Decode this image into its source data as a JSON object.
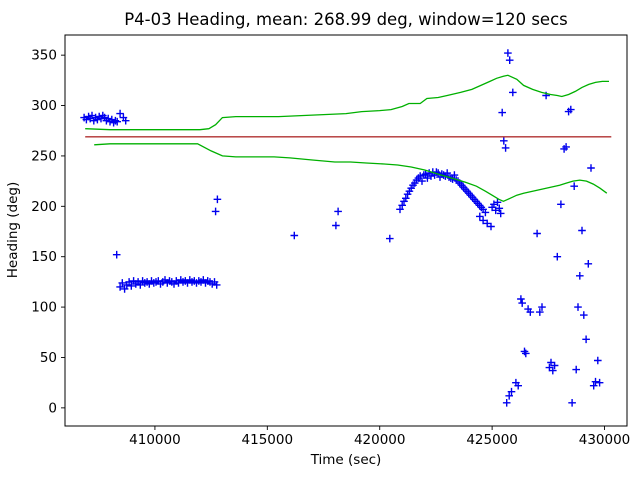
{
  "chart_data": {
    "type": "scatter",
    "title": "P4-03 Heading, mean: 268.99 deg, window=120 secs",
    "xlabel": "Time (sec)",
    "ylabel": "Heading (deg)",
    "xlim": [
      406000,
      431000
    ],
    "ylim": [
      -18,
      370
    ],
    "xticks": [
      410000,
      415000,
      420000,
      425000,
      430000
    ],
    "yticks": [
      0,
      50,
      100,
      150,
      200,
      250,
      300,
      350
    ],
    "grid": false,
    "legend": "none",
    "mean_deg": 268.99,
    "window_secs": 120,
    "colors": {
      "samples": "#0000ee",
      "window_bounds": "#00b000",
      "mean_line": "#b03030",
      "frame": "#000000"
    },
    "series": [
      {
        "name": "heading-samples",
        "type": "scatter",
        "marker": "+",
        "color": "#0000ee",
        "points": [
          [
            406850,
            288
          ],
          [
            406950,
            286
          ],
          [
            407050,
            289
          ],
          [
            407120,
            287
          ],
          [
            407200,
            290
          ],
          [
            407280,
            285
          ],
          [
            407360,
            288
          ],
          [
            407440,
            286
          ],
          [
            407520,
            289
          ],
          [
            407600,
            287
          ],
          [
            407680,
            290
          ],
          [
            407760,
            288
          ],
          [
            407840,
            285
          ],
          [
            407920,
            287
          ],
          [
            408000,
            284
          ],
          [
            408080,
            286
          ],
          [
            408160,
            283
          ],
          [
            408240,
            285
          ],
          [
            408320,
            284
          ],
          [
            408450,
            292
          ],
          [
            408600,
            288
          ],
          [
            408700,
            285
          ],
          [
            408300,
            152
          ],
          [
            408450,
            120
          ],
          [
            408550,
            124
          ],
          [
            408650,
            118
          ],
          [
            408750,
            122
          ],
          [
            408850,
            125
          ],
          [
            408950,
            121
          ],
          [
            409050,
            126
          ],
          [
            409150,
            123
          ],
          [
            409250,
            125
          ],
          [
            409350,
            122
          ],
          [
            409450,
            126
          ],
          [
            409550,
            124
          ],
          [
            409650,
            125
          ],
          [
            409750,
            123
          ],
          [
            409850,
            126
          ],
          [
            409950,
            124
          ],
          [
            410050,
            125
          ],
          [
            410150,
            126
          ],
          [
            410250,
            123
          ],
          [
            410350,
            125
          ],
          [
            410450,
            127
          ],
          [
            410550,
            124
          ],
          [
            410650,
            126
          ],
          [
            410750,
            125
          ],
          [
            410850,
            123
          ],
          [
            410950,
            126
          ],
          [
            411050,
            124
          ],
          [
            411150,
            127
          ],
          [
            411250,
            125
          ],
          [
            411350,
            126
          ],
          [
            411450,
            124
          ],
          [
            411550,
            127
          ],
          [
            411650,
            125
          ],
          [
            411750,
            126
          ],
          [
            411850,
            124
          ],
          [
            411950,
            126
          ],
          [
            412050,
            125
          ],
          [
            412150,
            127
          ],
          [
            412250,
            124
          ],
          [
            412350,
            126
          ],
          [
            412450,
            125
          ],
          [
            412550,
            123
          ],
          [
            412650,
            125
          ],
          [
            412750,
            122
          ],
          [
            412700,
            195
          ],
          [
            412780,
            207
          ],
          [
            416200,
            171
          ],
          [
            418050,
            181
          ],
          [
            418150,
            195
          ],
          [
            420450,
            168
          ],
          [
            420900,
            197
          ],
          [
            421000,
            201
          ],
          [
            421080,
            205
          ],
          [
            421160,
            208
          ],
          [
            421240,
            212
          ],
          [
            421320,
            215
          ],
          [
            421400,
            218
          ],
          [
            421480,
            221
          ],
          [
            421560,
            223
          ],
          [
            421640,
            226
          ],
          [
            421720,
            228
          ],
          [
            421800,
            230
          ],
          [
            421880,
            225
          ],
          [
            421960,
            231
          ],
          [
            422040,
            232
          ],
          [
            422120,
            228
          ],
          [
            422200,
            233
          ],
          [
            422280,
            230
          ],
          [
            422360,
            234
          ],
          [
            422440,
            231
          ],
          [
            422520,
            234
          ],
          [
            422600,
            233
          ],
          [
            422680,
            229
          ],
          [
            422760,
            232
          ],
          [
            422840,
            231
          ],
          [
            422920,
            230
          ],
          [
            423000,
            233
          ],
          [
            423080,
            229
          ],
          [
            423160,
            228
          ],
          [
            423240,
            227
          ],
          [
            423320,
            231
          ],
          [
            423400,
            226
          ],
          [
            423480,
            225
          ],
          [
            423560,
            223
          ],
          [
            423640,
            221
          ],
          [
            423720,
            219
          ],
          [
            423800,
            217
          ],
          [
            423880,
            215
          ],
          [
            423960,
            213
          ],
          [
            424040,
            211
          ],
          [
            424120,
            209
          ],
          [
            424200,
            207
          ],
          [
            424280,
            205
          ],
          [
            424360,
            203
          ],
          [
            424440,
            201
          ],
          [
            424520,
            199
          ],
          [
            424600,
            197
          ],
          [
            424700,
            194
          ],
          [
            424450,
            190
          ],
          [
            424600,
            186
          ],
          [
            424780,
            183
          ],
          [
            424950,
            180
          ],
          [
            425000,
            199
          ],
          [
            425080,
            202
          ],
          [
            425160,
            196
          ],
          [
            425240,
            204
          ],
          [
            425320,
            198
          ],
          [
            425380,
            193
          ],
          [
            425450,
            293
          ],
          [
            425520,
            265
          ],
          [
            425600,
            258
          ],
          [
            425700,
            352
          ],
          [
            425780,
            345
          ],
          [
            425920,
            313
          ],
          [
            425650,
            5
          ],
          [
            425760,
            12
          ],
          [
            425860,
            16
          ],
          [
            426060,
            25
          ],
          [
            426160,
            22
          ],
          [
            426280,
            108
          ],
          [
            426340,
            104
          ],
          [
            426440,
            56
          ],
          [
            426500,
            54
          ],
          [
            426600,
            98
          ],
          [
            426700,
            95
          ],
          [
            427000,
            173
          ],
          [
            427120,
            95
          ],
          [
            427220,
            100
          ],
          [
            427400,
            310
          ],
          [
            427550,
            40
          ],
          [
            427620,
            45
          ],
          [
            427700,
            37
          ],
          [
            427780,
            42
          ],
          [
            427900,
            150
          ],
          [
            428060,
            202
          ],
          [
            428200,
            257
          ],
          [
            428290,
            259
          ],
          [
            428400,
            294
          ],
          [
            428500,
            296
          ],
          [
            428560,
            5
          ],
          [
            428650,
            220
          ],
          [
            428740,
            38
          ],
          [
            428820,
            100
          ],
          [
            428900,
            131
          ],
          [
            429000,
            176
          ],
          [
            429080,
            92
          ],
          [
            429180,
            68
          ],
          [
            429280,
            143
          ],
          [
            429400,
            238
          ],
          [
            429520,
            22
          ],
          [
            429600,
            26
          ],
          [
            429700,
            47
          ],
          [
            429780,
            25
          ]
        ]
      },
      {
        "name": "upper-window-bound",
        "type": "line",
        "color": "#00b000",
        "points": [
          [
            406900,
            277
          ],
          [
            408000,
            276
          ],
          [
            409500,
            276
          ],
          [
            411000,
            276
          ],
          [
            412000,
            276
          ],
          [
            412400,
            277
          ],
          [
            412700,
            281
          ],
          [
            413000,
            288
          ],
          [
            413600,
            289
          ],
          [
            414500,
            289
          ],
          [
            415500,
            289
          ],
          [
            416500,
            290
          ],
          [
            417500,
            291
          ],
          [
            418500,
            292
          ],
          [
            419200,
            294
          ],
          [
            420000,
            295
          ],
          [
            420500,
            296
          ],
          [
            421000,
            299
          ],
          [
            421300,
            302
          ],
          [
            421800,
            302
          ],
          [
            422100,
            307
          ],
          [
            422600,
            308
          ],
          [
            423000,
            310
          ],
          [
            423600,
            313
          ],
          [
            424100,
            316
          ],
          [
            424500,
            320
          ],
          [
            424900,
            324
          ],
          [
            425200,
            327
          ],
          [
            425500,
            329
          ],
          [
            425700,
            330
          ],
          [
            426100,
            326
          ],
          [
            426400,
            320
          ],
          [
            426800,
            316
          ],
          [
            427200,
            313
          ],
          [
            427600,
            311
          ],
          [
            427900,
            310
          ],
          [
            428100,
            309
          ],
          [
            428400,
            311
          ],
          [
            428700,
            314
          ],
          [
            429000,
            318
          ],
          [
            429300,
            321
          ],
          [
            429600,
            323
          ],
          [
            429900,
            324
          ],
          [
            430200,
            324
          ]
        ]
      },
      {
        "name": "lower-window-bound",
        "type": "line",
        "color": "#00b000",
        "points": [
          [
            407300,
            261
          ],
          [
            408000,
            262
          ],
          [
            409500,
            262
          ],
          [
            411000,
            262
          ],
          [
            411900,
            262
          ],
          [
            412500,
            255
          ],
          [
            413000,
            250
          ],
          [
            413600,
            249
          ],
          [
            414500,
            249
          ],
          [
            415300,
            249
          ],
          [
            416000,
            248
          ],
          [
            417000,
            246
          ],
          [
            418000,
            244
          ],
          [
            418700,
            244
          ],
          [
            419400,
            243
          ],
          [
            420200,
            242
          ],
          [
            420800,
            241
          ],
          [
            421400,
            239
          ],
          [
            422000,
            236
          ],
          [
            422600,
            232
          ],
          [
            423200,
            228
          ],
          [
            423800,
            224
          ],
          [
            424300,
            220
          ],
          [
            424700,
            215
          ],
          [
            425000,
            211
          ],
          [
            425300,
            207
          ],
          [
            425500,
            205
          ],
          [
            425800,
            208
          ],
          [
            426100,
            211
          ],
          [
            426400,
            213
          ],
          [
            426800,
            215
          ],
          [
            427200,
            217
          ],
          [
            427600,
            219
          ],
          [
            428000,
            221
          ],
          [
            428300,
            223
          ],
          [
            428600,
            225
          ],
          [
            428900,
            226
          ],
          [
            429200,
            225
          ],
          [
            429500,
            222
          ],
          [
            429800,
            218
          ],
          [
            430100,
            213
          ]
        ]
      },
      {
        "name": "mean-line",
        "type": "line",
        "color": "#b03030",
        "points": [
          [
            406900,
            268.99
          ],
          [
            430300,
            268.99
          ]
        ]
      }
    ]
  }
}
